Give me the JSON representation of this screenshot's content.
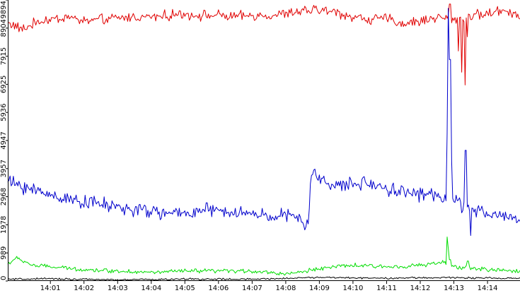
{
  "chart_data": {
    "type": "line",
    "title": "",
    "xlabel": "",
    "ylabel": "",
    "x_range": [
      "13:59:44",
      "14:14:58"
    ],
    "ylim": [
      0,
      9894
    ],
    "grid": false,
    "legend": "none",
    "x_ticks": [
      "14:01",
      "14:02",
      "14:03",
      "14:04",
      "14:05",
      "14:06",
      "14:07",
      "14:08",
      "14:09",
      "14:10",
      "14:11",
      "14:12",
      "14:13",
      "14:14"
    ],
    "y_ticks": [
      0,
      989,
      1978,
      2968,
      3957,
      4947,
      5936,
      6925,
      7915,
      8904,
      9894
    ],
    "sample_interval_seconds": 2,
    "series": [
      {
        "color": "#e00000",
        "anchors": [
          [
            "13:59:44",
            9100
          ],
          [
            "14:00:10",
            8850
          ],
          [
            "14:00:40",
            9150
          ],
          [
            "14:01:00",
            9200
          ],
          [
            "14:01:30",
            9300
          ],
          [
            "14:02:00",
            9150
          ],
          [
            "14:02:30",
            9200
          ],
          [
            "14:03:00",
            9250
          ],
          [
            "14:03:30",
            9300
          ],
          [
            "14:04:00",
            9300
          ],
          [
            "14:04:30",
            9350
          ],
          [
            "14:05:00",
            9400
          ],
          [
            "14:05:30",
            9350
          ],
          [
            "14:06:00",
            9350
          ],
          [
            "14:06:30",
            9300
          ],
          [
            "14:07:00",
            9350
          ],
          [
            "14:07:30",
            9350
          ],
          [
            "14:08:00",
            9400
          ],
          [
            "14:08:30",
            9500
          ],
          [
            "14:09:00",
            9550
          ],
          [
            "14:09:30",
            9450
          ],
          [
            "14:10:00",
            9300
          ],
          [
            "14:10:30",
            9200
          ],
          [
            "14:11:00",
            9250
          ],
          [
            "14:11:30",
            9050
          ],
          [
            "14:12:00",
            9150
          ],
          [
            "14:12:30",
            9300
          ],
          [
            "14:13:00",
            9200
          ],
          [
            "14:13:30",
            9350
          ],
          [
            "14:14:00",
            9400
          ],
          [
            "14:14:30",
            9550
          ],
          [
            "14:14:58",
            9350
          ]
        ],
        "spikes": [
          [
            "14:12:53",
            9750
          ],
          [
            "14:13:08",
            8100
          ],
          [
            "14:13:14",
            7350
          ],
          [
            "14:13:20",
            6900
          ],
          [
            "14:13:24",
            8600
          ]
        ],
        "noise": 220
      },
      {
        "color": "#0000cc",
        "anchors": [
          [
            "13:59:44",
            3500
          ],
          [
            "14:00:15",
            3300
          ],
          [
            "14:00:40",
            3150
          ],
          [
            "14:01:00",
            3050
          ],
          [
            "14:01:30",
            2900
          ],
          [
            "14:02:00",
            2800
          ],
          [
            "14:02:30",
            2700
          ],
          [
            "14:03:00",
            2600
          ],
          [
            "14:03:30",
            2500
          ],
          [
            "14:04:00",
            2450
          ],
          [
            "14:04:30",
            2350
          ],
          [
            "14:05:00",
            2400
          ],
          [
            "14:05:30",
            2500
          ],
          [
            "14:06:00",
            2450
          ],
          [
            "14:06:30",
            2400
          ],
          [
            "14:07:00",
            2350
          ],
          [
            "14:07:30",
            2300
          ],
          [
            "14:08:00",
            2300
          ],
          [
            "14:08:25",
            2200
          ],
          [
            "14:08:30",
            1900
          ],
          [
            "14:08:40",
            2050
          ],
          [
            "14:08:45",
            3800
          ],
          [
            "14:09:00",
            3600
          ],
          [
            "14:09:30",
            3350
          ],
          [
            "14:10:00",
            3400
          ],
          [
            "14:10:30",
            3450
          ],
          [
            "14:11:00",
            3250
          ],
          [
            "14:11:30",
            3150
          ],
          [
            "14:12:00",
            3050
          ],
          [
            "14:12:30",
            3000
          ],
          [
            "14:12:45",
            2950
          ],
          [
            "14:13:00",
            2800
          ],
          [
            "14:13:30",
            2500
          ],
          [
            "14:14:00",
            2350
          ],
          [
            "14:14:30",
            2300
          ],
          [
            "14:14:58",
            2150
          ]
        ],
        "spikes": [
          [
            "14:12:48",
            5200
          ],
          [
            "14:12:50",
            9600
          ],
          [
            "14:12:53",
            7800
          ],
          [
            "14:12:56",
            4200
          ],
          [
            "14:13:21",
            4600
          ],
          [
            "14:13:30",
            1600
          ]
        ],
        "noise": 300
      },
      {
        "color": "#00dd00",
        "anchors": [
          [
            "13:59:44",
            600
          ],
          [
            "14:00:00",
            800
          ],
          [
            "14:00:30",
            550
          ],
          [
            "14:01:00",
            500
          ],
          [
            "14:02:00",
            400
          ],
          [
            "14:03:00",
            350
          ],
          [
            "14:04:00",
            300
          ],
          [
            "14:05:00",
            350
          ],
          [
            "14:06:00",
            350
          ],
          [
            "14:07:00",
            350
          ],
          [
            "14:08:00",
            250
          ],
          [
            "14:08:30",
            320
          ],
          [
            "14:09:00",
            450
          ],
          [
            "14:10:00",
            550
          ],
          [
            "14:11:00",
            500
          ],
          [
            "14:12:00",
            550
          ],
          [
            "14:12:40",
            650
          ],
          [
            "14:13:00",
            500
          ],
          [
            "14:13:30",
            450
          ],
          [
            "14:14:00",
            400
          ],
          [
            "14:14:58",
            350
          ]
        ],
        "spikes": [
          [
            "14:12:49",
            1550
          ],
          [
            "14:12:51",
            1150
          ],
          [
            "14:12:53",
            750
          ],
          [
            "14:13:25",
            700
          ]
        ],
        "noise": 90
      },
      {
        "color": "#000000",
        "anchors": [
          [
            "13:59:44",
            60
          ],
          [
            "14:01:00",
            80
          ],
          [
            "14:03:00",
            40
          ],
          [
            "14:05:00",
            70
          ],
          [
            "14:07:00",
            60
          ],
          [
            "14:09:00",
            130
          ],
          [
            "14:10:00",
            110
          ],
          [
            "14:11:00",
            100
          ],
          [
            "14:12:00",
            110
          ],
          [
            "14:13:00",
            120
          ],
          [
            "14:14:00",
            100
          ],
          [
            "14:14:58",
            90
          ]
        ],
        "spikes": [],
        "noise": 40
      }
    ]
  }
}
